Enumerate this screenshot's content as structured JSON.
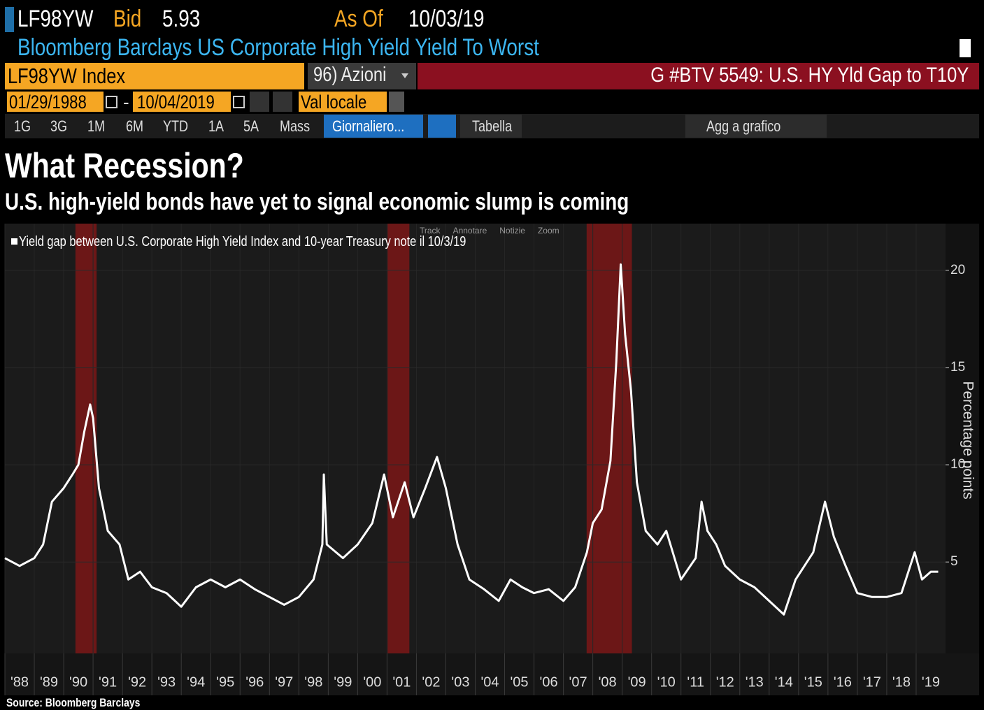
{
  "header": {
    "ticker": "LF98YW",
    "bid_label": "Bid",
    "bid": 5.93,
    "as_of_label": "As Of",
    "as_of": "10/03/19",
    "security_name": "Bloomberg Barclays US Corporate High Yield Yield To Worst",
    "security": "LF98YW Index",
    "menu": "96) Azioni",
    "graph_title": "G #BTV 5549: U.S. HY Yld Gap to T10Y"
  },
  "controls": {
    "start_date": "01/29/1988",
    "date_separator": "-",
    "end_date": "10/04/2019",
    "currency": "Val locale",
    "periods": [
      "1G",
      "3G",
      "1M",
      "6M",
      "YTD",
      "1A",
      "5A",
      "Mass"
    ],
    "frequency": "Giornaliero...",
    "table_button": "Tabella",
    "add_button": "Agg a grafico",
    "chart_tools": [
      "Track",
      "Annotare",
      "Notizie",
      "Zoom"
    ]
  },
  "chart_data": {
    "type": "line",
    "title": "What Recession?",
    "subtitle": "U.S. high-yield bonds have yet to signal economic slump is coming",
    "ylabel": "Percentage points",
    "source": "Source: Bloomberg Barclays",
    "grid": true,
    "x": [
      1988.0,
      1988.5,
      1989.0,
      1989.3,
      1989.6,
      1990.0,
      1990.3,
      1990.5,
      1990.7,
      1990.9,
      1991.0,
      1991.2,
      1991.5,
      1991.9,
      1992.2,
      1992.6,
      1993.0,
      1993.5,
      1994.0,
      1994.5,
      1995.0,
      1995.5,
      1996.0,
      1996.5,
      1997.0,
      1997.5,
      1998.0,
      1998.5,
      1998.8,
      1998.85,
      1998.95,
      1999.5,
      2000.0,
      2000.5,
      2000.9,
      2001.2,
      2001.6,
      2001.9,
      2002.3,
      2002.7,
      2003.0,
      2003.4,
      2003.8,
      2004.3,
      2004.8,
      2005.2,
      2005.6,
      2006.0,
      2006.5,
      2007.0,
      2007.4,
      2007.8,
      2008.0,
      2008.3,
      2008.6,
      2008.8,
      2008.95,
      2009.1,
      2009.3,
      2009.5,
      2009.8,
      2010.2,
      2010.5,
      2011.0,
      2011.5,
      2011.7,
      2011.9,
      2012.2,
      2012.5,
      2013.0,
      2013.5,
      2014.0,
      2014.5,
      2014.9,
      2015.5,
      2015.9,
      2016.2,
      2016.6,
      2017.0,
      2017.5,
      2018.0,
      2018.5,
      2018.95,
      2019.2,
      2019.5,
      2019.75
    ],
    "series": [
      {
        "name": "Yield gap between U.S. Corporate High Yield Index and 10-year Treasury note il 10/3/19",
        "color": "#ffffff",
        "values": [
          5.2,
          4.8,
          5.2,
          5.9,
          8.1,
          8.8,
          9.5,
          10,
          11.7,
          13.1,
          12.4,
          8.8,
          6.6,
          5.9,
          4.1,
          4.5,
          3.7,
          3.4,
          2.7,
          3.7,
          4.1,
          3.7,
          4.1,
          3.6,
          3.2,
          2.8,
          3.2,
          4.1,
          5.9,
          9.5,
          5.9,
          5.2,
          5.9,
          7.0,
          9.5,
          7.3,
          9.1,
          7.3,
          8.8,
          10.4,
          8.8,
          5.9,
          4.1,
          3.6,
          3.0,
          4.1,
          3.7,
          3.4,
          3.6,
          3.0,
          3.7,
          5.5,
          7.0,
          7.7,
          10.2,
          15.3,
          20.3,
          16.7,
          13.8,
          9.1,
          6.6,
          5.9,
          6.6,
          4.1,
          5.2,
          8.1,
          6.6,
          5.9,
          4.8,
          4.1,
          3.7,
          3.0,
          2.3,
          4.1,
          5.5,
          8.1,
          6.3,
          4.8,
          3.4,
          3.2,
          3.2,
          3.4,
          5.5,
          4.1,
          4.5,
          4.5
        ]
      }
    ],
    "recessions": [
      {
        "start": 1990.4,
        "end": 1991.12
      },
      {
        "start": 2001.02,
        "end": 2001.76
      },
      {
        "start": 2007.79,
        "end": 2009.33
      }
    ],
    "recession_color": "#7a1616",
    "xlim": [
      1988,
      2020
    ],
    "ylim": [
      0.3,
      22.4
    ],
    "yticks": [
      5,
      10,
      15,
      20
    ],
    "xticks": [
      {
        "value": 1988,
        "label": "'88"
      },
      {
        "value": 1989,
        "label": "'89"
      },
      {
        "value": 1990,
        "label": "'90"
      },
      {
        "value": 1991,
        "label": "'91"
      },
      {
        "value": 1992,
        "label": "'92"
      },
      {
        "value": 1993,
        "label": "'93"
      },
      {
        "value": 1994,
        "label": "'94"
      },
      {
        "value": 1995,
        "label": "'95"
      },
      {
        "value": 1996,
        "label": "'96"
      },
      {
        "value": 1997,
        "label": "'97"
      },
      {
        "value": 1998,
        "label": "'98"
      },
      {
        "value": 1999,
        "label": "'99"
      },
      {
        "value": 2000,
        "label": "'00"
      },
      {
        "value": 2001,
        "label": "'01"
      },
      {
        "value": 2002,
        "label": "'02"
      },
      {
        "value": 2003,
        "label": "'03"
      },
      {
        "value": 2004,
        "label": "'04"
      },
      {
        "value": 2005,
        "label": "'05"
      },
      {
        "value": 2006,
        "label": "'06"
      },
      {
        "value": 2007,
        "label": "'07"
      },
      {
        "value": 2008,
        "label": "'08"
      },
      {
        "value": 2009,
        "label": "'09"
      },
      {
        "value": 2010,
        "label": "'10"
      },
      {
        "value": 2011,
        "label": "'11"
      },
      {
        "value": 2012,
        "label": "'12"
      },
      {
        "value": 2013,
        "label": "'13"
      },
      {
        "value": 2014,
        "label": "'14"
      },
      {
        "value": 2015,
        "label": "'15"
      },
      {
        "value": 2016,
        "label": "'16"
      },
      {
        "value": 2017,
        "label": "'17"
      },
      {
        "value": 2018,
        "label": "'18"
      },
      {
        "value": 2019,
        "label": "'19"
      }
    ]
  }
}
